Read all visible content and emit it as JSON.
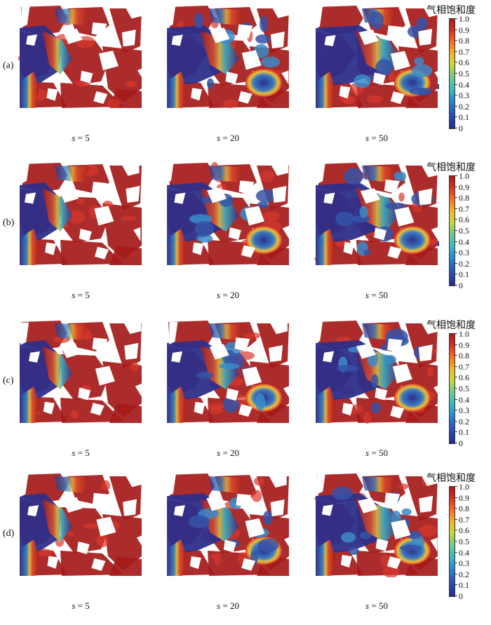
{
  "colorbar": {
    "title": "气相饱和度",
    "ticks": [
      "1.0",
      "0.9",
      "0.8",
      "0.7",
      "0.6",
      "0.5",
      "0.4",
      "0.3",
      "0.2",
      "0.1",
      "0"
    ]
  },
  "rows": [
    {
      "label": "(a)",
      "panels": [
        {
          "s_symbol": "s",
          "s_value": "= 5"
        },
        {
          "s_symbol": "s",
          "s_value": "= 20"
        },
        {
          "s_symbol": "s",
          "s_value": "= 50"
        }
      ]
    },
    {
      "label": "(b)",
      "panels": [
        {
          "s_symbol": "s",
          "s_value": "= 5"
        },
        {
          "s_symbol": "s",
          "s_value": "= 20"
        },
        {
          "s_symbol": "s",
          "s_value": "= 50"
        }
      ]
    },
    {
      "label": "(c)",
      "panels": [
        {
          "s_symbol": "s",
          "s_value": "= 5"
        },
        {
          "s_symbol": "s",
          "s_value": "= 20"
        },
        {
          "s_symbol": "s",
          "s_value": "= 50"
        }
      ]
    },
    {
      "label": "(d)",
      "panels": [
        {
          "s_symbol": "s",
          "s_value": "= 5"
        },
        {
          "s_symbol": "s",
          "s_value": "= 20"
        },
        {
          "s_symbol": "s",
          "s_value": "= 50"
        }
      ]
    }
  ],
  "colors": {
    "high_saturation": "#a51a1a",
    "mid_saturation": "#e8c23a",
    "low_saturation": "#2d2f8a"
  }
}
